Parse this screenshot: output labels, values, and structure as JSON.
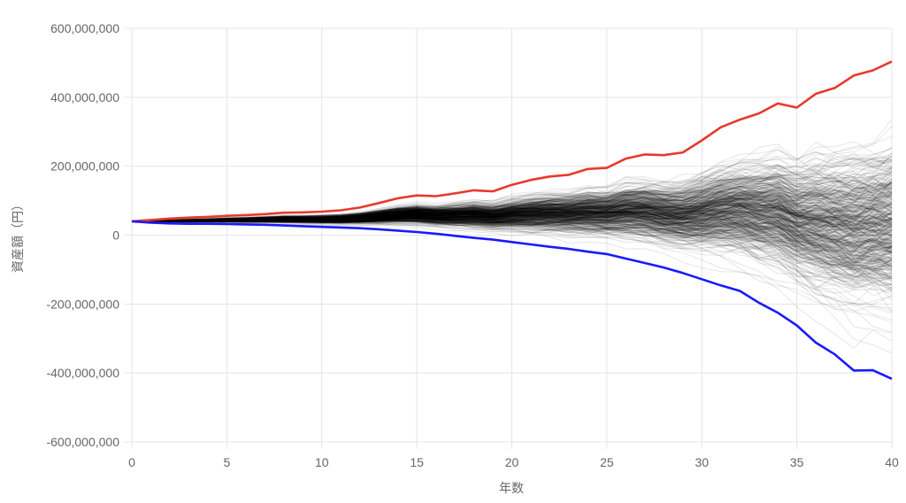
{
  "chart_data": {
    "type": "line",
    "xlabel": "年数",
    "ylabel": "資産額（円）",
    "xlim": [
      0,
      40
    ],
    "ylim": [
      -600000000,
      600000000
    ],
    "x_ticks": [
      0,
      5,
      10,
      15,
      20,
      25,
      30,
      35,
      40
    ],
    "y_ticks": [
      -600000000,
      -400000000,
      -200000000,
      0,
      200000000,
      400000000,
      600000000
    ],
    "x_tick_labels": [
      "0",
      "5",
      "10",
      "15",
      "20",
      "25",
      "30",
      "35",
      "40"
    ],
    "y_tick_labels": [
      "-600,000,000",
      "-400,000,000",
      "-200,000,000",
      "0",
      "200,000,000",
      "400,000,000",
      "600,000,000"
    ],
    "grid": true,
    "legend": "none",
    "x": [
      0,
      1,
      2,
      3,
      4,
      5,
      6,
      7,
      8,
      9,
      10,
      11,
      12,
      13,
      14,
      15,
      16,
      17,
      18,
      19,
      20,
      21,
      22,
      23,
      24,
      25,
      26,
      27,
      28,
      29,
      30,
      31,
      32,
      33,
      34,
      35,
      36,
      37,
      38,
      39,
      40
    ],
    "series": [
      {
        "color": "#e8392c",
        "values": [
          40000000,
          44000000,
          48000000,
          51000000,
          53000000,
          56000000,
          58000000,
          61000000,
          65000000,
          66000000,
          68000000,
          72000000,
          80000000,
          93000000,
          107000000,
          115000000,
          113000000,
          121000000,
          130000000,
          127000000,
          146000000,
          160000000,
          170000000,
          175000000,
          192000000,
          195000000,
          222000000,
          234000000,
          232000000,
          240000000,
          275000000,
          313000000,
          335000000,
          353000000,
          382000000,
          370000000,
          410000000,
          427000000,
          463000000,
          478000000,
          504000000
        ]
      },
      {
        "color": "#1a1aff",
        "values": [
          40000000,
          36000000,
          34000000,
          33000000,
          33000000,
          32000000,
          31000000,
          30000000,
          28000000,
          26000000,
          24000000,
          22000000,
          20000000,
          17000000,
          13000000,
          9000000,
          4000000,
          -2000000,
          -8000000,
          -13000000,
          -20000000,
          -27000000,
          -34000000,
          -40000000,
          -48000000,
          -55000000,
          -68000000,
          -81000000,
          -94000000,
          -110000000,
          -128000000,
          -146000000,
          -162000000,
          -196000000,
          -225000000,
          -262000000,
          -312000000,
          -346000000,
          -393000000,
          -392000000,
          -417000000
        ]
      }
    ],
    "simulation_paths": {
      "color": "#000000",
      "count": 500,
      "start_value": 40000000,
      "upper_envelope_series": 0,
      "lower_envelope_series": 1
    }
  }
}
